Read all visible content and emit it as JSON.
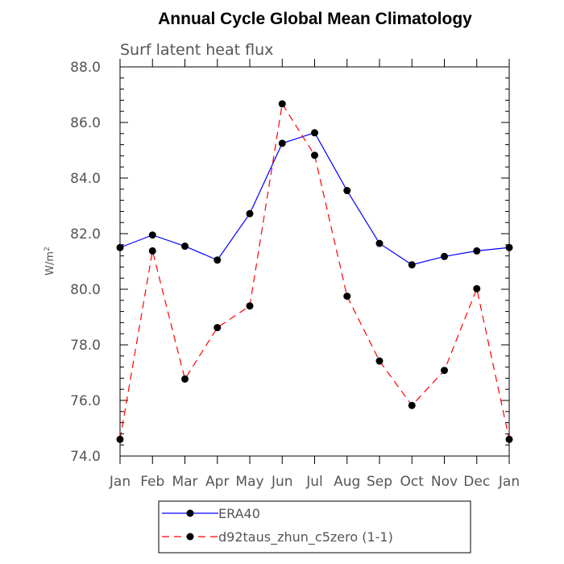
{
  "chart_data": {
    "type": "line",
    "title": "Annual Cycle Global Mean Climatology",
    "subtitle": "Surf latent heat flux",
    "ylabel": "W/m",
    "ylabel_sup": "2",
    "categories": [
      "Jan",
      "Feb",
      "Mar",
      "Apr",
      "May",
      "Jun",
      "Jul",
      "Aug",
      "Sep",
      "Oct",
      "Nov",
      "Dec",
      "Jan"
    ],
    "ylim": [
      74.0,
      88.0
    ],
    "yticks": [
      74.0,
      76.0,
      78.0,
      80.0,
      82.0,
      84.0,
      86.0,
      88.0
    ],
    "ytick_labels": [
      "74.0",
      "76.0",
      "78.0",
      "80.0",
      "82.0",
      "84.0",
      "86.0",
      "88.0"
    ],
    "grid": false,
    "legend_position": "bottom",
    "series": [
      {
        "name": "ERA40",
        "color": "#0000ff",
        "dash": "solid",
        "values": [
          81.5,
          81.95,
          81.55,
          81.05,
          82.72,
          85.25,
          85.63,
          83.55,
          81.65,
          80.88,
          81.18,
          81.38,
          81.5
        ]
      },
      {
        "name": "d92taus_zhun_c5zero (1-1)",
        "color": "#ff0000",
        "dash": "dashed",
        "values": [
          74.6,
          81.38,
          76.77,
          78.62,
          79.4,
          86.67,
          84.82,
          79.75,
          77.42,
          75.82,
          77.08,
          80.02,
          74.6
        ]
      }
    ]
  }
}
